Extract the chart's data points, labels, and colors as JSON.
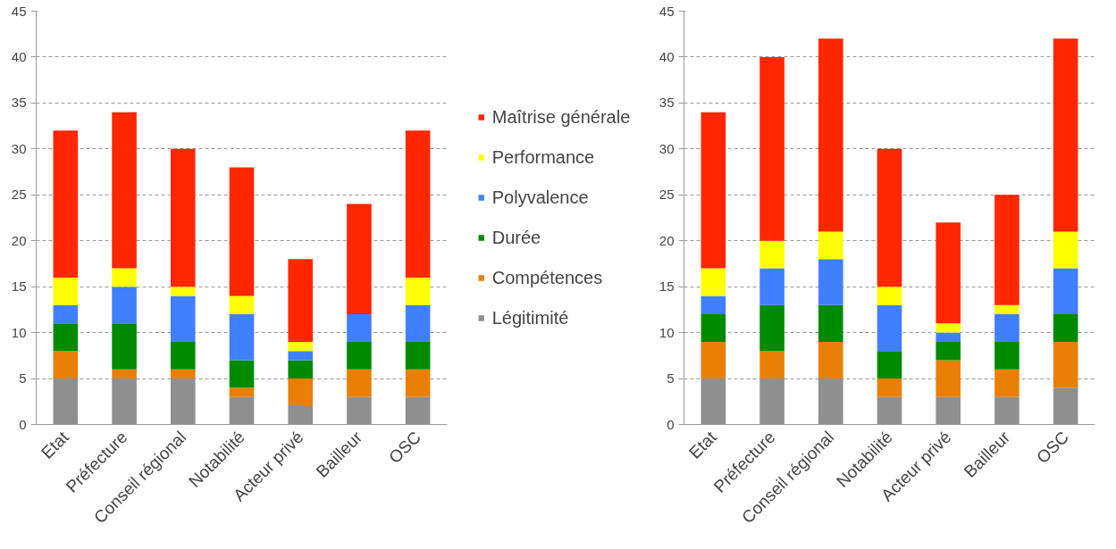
{
  "chart_data": [
    {
      "type": "bar",
      "stacked": true,
      "categories": [
        "Etat",
        "Préfecture",
        "Conseil régional",
        "Notabilité",
        "Acteur privé",
        "Bailleur",
        "OSC"
      ],
      "ylim": [
        0,
        45
      ],
      "yticks": [
        0,
        5,
        10,
        15,
        20,
        25,
        30,
        35,
        40,
        45
      ],
      "grid": "y",
      "legend": "right",
      "series": [
        {
          "name": "Légitimité",
          "color": "#8f8f8f",
          "values": [
            5,
            5,
            5,
            3,
            2,
            3,
            3
          ]
        },
        {
          "name": "Compétences",
          "color": "#e97f05",
          "values": [
            3,
            1,
            1,
            1,
            3,
            3,
            3
          ]
        },
        {
          "name": "Durée",
          "color": "#008a00",
          "values": [
            3,
            5,
            3,
            3,
            2,
            3,
            3
          ]
        },
        {
          "name": "Polyvalence",
          "color": "#4080ff",
          "values": [
            2,
            4,
            5,
            5,
            1,
            3,
            4
          ]
        },
        {
          "name": "Performance",
          "color": "#ffff00",
          "values": [
            3,
            2,
            1,
            2,
            1,
            0,
            3
          ]
        },
        {
          "name": "Maîtrise générale",
          "color": "#ff2600",
          "values": [
            16,
            17,
            15,
            14,
            9,
            12,
            16
          ]
        }
      ]
    },
    {
      "type": "bar",
      "stacked": true,
      "categories": [
        "Etat",
        "Préfecture",
        "Conseil régional",
        "Notabilité",
        "Acteur privé",
        "Bailleur",
        "OSC"
      ],
      "ylim": [
        0,
        45
      ],
      "yticks": [
        0,
        5,
        10,
        15,
        20,
        25,
        30,
        35,
        40,
        45
      ],
      "grid": "y",
      "series": [
        {
          "color": "#8f8f8f",
          "values": [
            5,
            5,
            5,
            3,
            3,
            3,
            4
          ]
        },
        {
          "color": "#e97f05",
          "values": [
            4,
            3,
            4,
            2,
            4,
            3,
            5
          ]
        },
        {
          "color": "#008a00",
          "values": [
            3,
            5,
            4,
            3,
            2,
            3,
            3
          ]
        },
        {
          "color": "#4080ff",
          "values": [
            2,
            4,
            5,
            5,
            1,
            3,
            5
          ]
        },
        {
          "color": "#ffff00",
          "values": [
            3,
            3,
            3,
            2,
            1,
            1,
            4
          ]
        },
        {
          "color": "#ff2600",
          "values": [
            17,
            20,
            21,
            15,
            11,
            12,
            21
          ]
        }
      ]
    }
  ]
}
